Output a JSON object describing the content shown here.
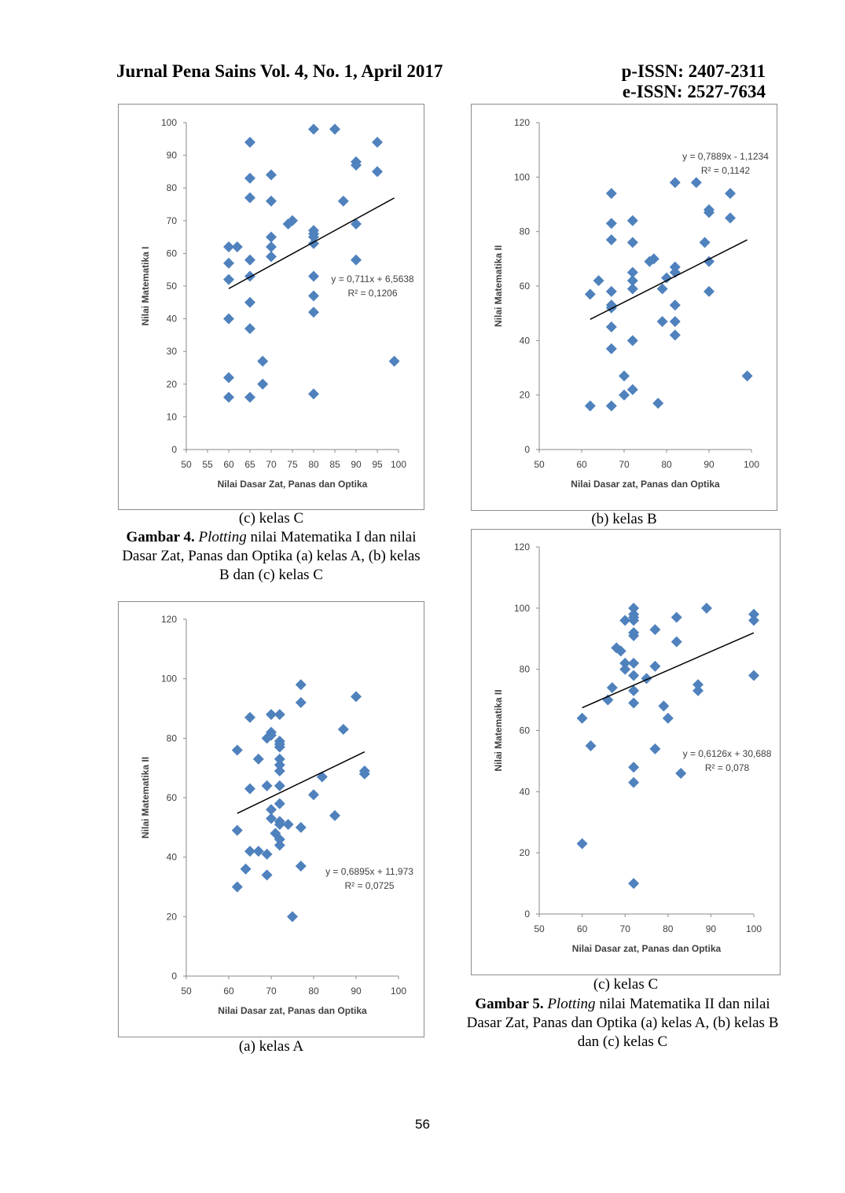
{
  "header": {
    "journal": "Jurnal Pena Sains Vol. 4, No. 1, April 2017",
    "pissn": "p-ISSN: 2407-2311",
    "eissn": "e-ISSN: 2527-7634"
  },
  "figure4": {
    "label": "Gambar 4.",
    "italic": "Plotting",
    "text_rest": " nilai Matematika I dan nilai Dasar Zat, Panas dan Optika (a) kelas A, (b) kelas B dan (c) kelas C"
  },
  "figure5": {
    "label": "Gambar 5.",
    "italic": "Plotting",
    "text_rest": " nilai Matematika II dan nilai Dasar Zat, Panas dan Optika (a) kelas A, (b) kelas B dan (c) kelas C"
  },
  "subcaptions": {
    "c1": "(c)   kelas C",
    "b": "(b)   kelas B",
    "a": "(a)   kelas A",
    "c2": "(c)   kelas C"
  },
  "page_number": "56",
  "colors": {
    "marker": "#4f81bd",
    "trendline": "#000000",
    "border": "#8c8c8c"
  },
  "chart_data": [
    {
      "id": "chart-mat1-c",
      "type": "scatter",
      "xlabel": "Nilai Dasar Zat, Panas dan Optika",
      "ylabel": "Nilai Matematika I",
      "xlim": [
        50,
        100
      ],
      "ylim": [
        0,
        100
      ],
      "xticks": [
        50,
        55,
        60,
        65,
        70,
        75,
        80,
        85,
        90,
        95,
        100
      ],
      "yticks": [
        0,
        10,
        20,
        30,
        40,
        50,
        60,
        70,
        80,
        90,
        100
      ],
      "grid": false,
      "trendline": {
        "slope": 0.711,
        "intercept": 6.5638,
        "x_range": [
          60,
          99
        ]
      },
      "equation": "y = 0,711x + 6,5638",
      "r2": "R² = 0,1206",
      "points": [
        [
          60,
          62
        ],
        [
          60,
          57
        ],
        [
          60,
          52
        ],
        [
          60,
          40
        ],
        [
          60,
          22
        ],
        [
          60,
          16
        ],
        [
          62,
          62
        ],
        [
          65,
          94
        ],
        [
          65,
          83
        ],
        [
          65,
          77
        ],
        [
          65,
          58
        ],
        [
          65,
          53
        ],
        [
          65,
          45
        ],
        [
          65,
          37
        ],
        [
          65,
          16
        ],
        [
          68,
          27
        ],
        [
          68,
          20
        ],
        [
          70,
          84
        ],
        [
          70,
          76
        ],
        [
          70,
          65
        ],
        [
          70,
          62
        ],
        [
          70,
          59
        ],
        [
          74,
          69
        ],
        [
          75,
          70
        ],
        [
          80,
          98
        ],
        [
          80,
          67
        ],
        [
          80,
          66
        ],
        [
          80,
          65
        ],
        [
          80,
          63
        ],
        [
          80,
          53
        ],
        [
          80,
          47
        ],
        [
          80,
          42
        ],
        [
          80,
          17
        ],
        [
          85,
          98
        ],
        [
          87,
          76
        ],
        [
          90,
          88
        ],
        [
          90,
          87
        ],
        [
          90,
          69
        ],
        [
          90,
          58
        ],
        [
          95,
          94
        ],
        [
          95,
          85
        ],
        [
          99,
          27
        ]
      ]
    },
    {
      "id": "chart-mat2-b",
      "type": "scatter",
      "xlabel": "Nilai Dasar zat, Panas dan Optika",
      "ylabel": "Nilai Matematika II",
      "xlim": [
        50,
        100
      ],
      "ylim": [
        0,
        120
      ],
      "xticks": [
        50,
        60,
        70,
        80,
        90,
        100
      ],
      "yticks": [
        0,
        20,
        40,
        60,
        80,
        100,
        120
      ],
      "grid": false,
      "trendline": {
        "slope": 0.7889,
        "intercept": -1.1234,
        "x_range": [
          62,
          99
        ]
      },
      "equation": "y = 0,7889x - 1,1234",
      "r2": "R² = 0,1142",
      "points": [
        [
          62,
          57
        ],
        [
          62,
          16
        ],
        [
          64,
          62
        ],
        [
          67,
          94
        ],
        [
          67,
          83
        ],
        [
          67,
          77
        ],
        [
          67,
          58
        ],
        [
          67,
          53
        ],
        [
          67,
          52
        ],
        [
          67,
          45
        ],
        [
          67,
          37
        ],
        [
          67,
          16
        ],
        [
          70,
          27
        ],
        [
          70,
          20
        ],
        [
          72,
          84
        ],
        [
          72,
          76
        ],
        [
          72,
          65
        ],
        [
          72,
          62
        ],
        [
          72,
          59
        ],
        [
          72,
          40
        ],
        [
          72,
          22
        ],
        [
          76,
          69
        ],
        [
          77,
          70
        ],
        [
          78,
          17
        ],
        [
          79,
          59
        ],
        [
          79,
          47
        ],
        [
          80,
          63
        ],
        [
          82,
          98
        ],
        [
          82,
          67
        ],
        [
          82,
          65
        ],
        [
          82,
          53
        ],
        [
          82,
          47
        ],
        [
          82,
          42
        ],
        [
          87,
          98
        ],
        [
          89,
          76
        ],
        [
          90,
          88
        ],
        [
          90,
          87
        ],
        [
          90,
          69
        ],
        [
          90,
          58
        ],
        [
          95,
          94
        ],
        [
          95,
          85
        ],
        [
          99,
          27
        ]
      ]
    },
    {
      "id": "chart-mat2-c",
      "type": "scatter",
      "xlabel": "Nilai Dasar zat, Panas dan Optika",
      "ylabel": "Nilai Matematika II",
      "xlim": [
        50,
        100
      ],
      "ylim": [
        0,
        120
      ],
      "xticks": [
        50,
        60,
        70,
        80,
        90,
        100
      ],
      "yticks": [
        0,
        20,
        40,
        60,
        80,
        100,
        120
      ],
      "grid": false,
      "trendline": {
        "slope": 0.6126,
        "intercept": 30.688,
        "x_range": [
          60,
          100
        ]
      },
      "equation": "y = 0,6126x + 30,688",
      "r2": "R² = 0,078",
      "points": [
        [
          60,
          64
        ],
        [
          60,
          23
        ],
        [
          62,
          55
        ],
        [
          66,
          70
        ],
        [
          67,
          74
        ],
        [
          68,
          87
        ],
        [
          69,
          86
        ],
        [
          70,
          96
        ],
        [
          70,
          82
        ],
        [
          70,
          80
        ],
        [
          72,
          100
        ],
        [
          72,
          98
        ],
        [
          72,
          97
        ],
        [
          72,
          96
        ],
        [
          72,
          92
        ],
        [
          72,
          91
        ],
        [
          72,
          82
        ],
        [
          72,
          78
        ],
        [
          72,
          73
        ],
        [
          72,
          69
        ],
        [
          72,
          48
        ],
        [
          72,
          43
        ],
        [
          72,
          10
        ],
        [
          75,
          77
        ],
        [
          77,
          93
        ],
        [
          77,
          81
        ],
        [
          77,
          54
        ],
        [
          79,
          68
        ],
        [
          80,
          64
        ],
        [
          82,
          97
        ],
        [
          82,
          89
        ],
        [
          83,
          46
        ],
        [
          87,
          75
        ],
        [
          87,
          73
        ],
        [
          89,
          100
        ],
        [
          100,
          98
        ],
        [
          100,
          96
        ],
        [
          100,
          78
        ]
      ]
    },
    {
      "id": "chart-mat2-a",
      "type": "scatter",
      "xlabel": "Nilai Dasar zat, Panas dan Optika",
      "ylabel": "Nilai Matematika II",
      "xlim": [
        50,
        100
      ],
      "ylim": [
        0,
        120
      ],
      "xticks": [
        50,
        60,
        70,
        80,
        90,
        100
      ],
      "yticks": [
        0,
        20,
        40,
        60,
        80,
        100,
        120
      ],
      "grid": false,
      "trendline": {
        "slope": 0.6895,
        "intercept": 11.973,
        "x_range": [
          62,
          92
        ]
      },
      "equation": "y = 0,6895x + 11,973",
      "r2": "R² = 0,0725",
      "points": [
        [
          62,
          76
        ],
        [
          62,
          49
        ],
        [
          62,
          30
        ],
        [
          64,
          36
        ],
        [
          65,
          87
        ],
        [
          65,
          63
        ],
        [
          65,
          42
        ],
        [
          67,
          73
        ],
        [
          67,
          42
        ],
        [
          69,
          80
        ],
        [
          69,
          64
        ],
        [
          69,
          41
        ],
        [
          69,
          34
        ],
        [
          70,
          88
        ],
        [
          70,
          82
        ],
        [
          70,
          81
        ],
        [
          70,
          56
        ],
        [
          70,
          53
        ],
        [
          71,
          48
        ],
        [
          72,
          88
        ],
        [
          72,
          79
        ],
        [
          72,
          78
        ],
        [
          72,
          77
        ],
        [
          72,
          73
        ],
        [
          72,
          71
        ],
        [
          72,
          69
        ],
        [
          72,
          64
        ],
        [
          72,
          58
        ],
        [
          72,
          52
        ],
        [
          72,
          51
        ],
        [
          72,
          46
        ],
        [
          72,
          44
        ],
        [
          74,
          51
        ],
        [
          75,
          20
        ],
        [
          77,
          98
        ],
        [
          77,
          92
        ],
        [
          77,
          50
        ],
        [
          77,
          37
        ],
        [
          80,
          61
        ],
        [
          82,
          67
        ],
        [
          85,
          54
        ],
        [
          87,
          83
        ],
        [
          90,
          94
        ],
        [
          92,
          69
        ],
        [
          92,
          68
        ]
      ]
    }
  ]
}
